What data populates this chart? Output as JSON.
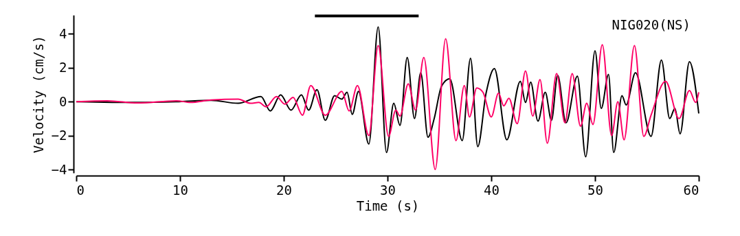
{
  "chart_data": {
    "type": "line",
    "xlabel": "Time (s)",
    "ylabel": "Velocity (cm/s)",
    "annotations": [
      "NIG020(NS)"
    ],
    "xlim": [
      0,
      60
    ],
    "xticks": [
      0,
      10,
      20,
      30,
      40,
      50,
      60
    ],
    "ylim": [
      -4.2,
      5.1
    ],
    "yticks": [
      -4,
      -2,
      0,
      2,
      4
    ],
    "grid": false,
    "legend": false,
    "series": [
      {
        "color": "#000000",
        "x": [
          0,
          5.9,
          9.9,
          13,
          15.6,
          17.8,
          18.7,
          19.7,
          20.7,
          21.7,
          22.4,
          23.2,
          24.0,
          24.9,
          25.6,
          26.1,
          26.6,
          27.2,
          28.2,
          29.1,
          29.9,
          30.6,
          31.2,
          31.9,
          32.6,
          33.2,
          33.9,
          34.5,
          35.2,
          36.0,
          37.2,
          38.0,
          38.7,
          39.5,
          40.3,
          41.5,
          42.8,
          43.3,
          43.8,
          44.5,
          45.2,
          45.8,
          46.4,
          47.2,
          48.3,
          49.1,
          50.0,
          50.6,
          51.3,
          51.8,
          52.6,
          53.0,
          53.9,
          55.4,
          56.4,
          57.2,
          57.7,
          58.2,
          59.1,
          60
        ],
        "values": [
          0,
          -0.05,
          0,
          0.08,
          -0.1,
          0.3,
          -0.55,
          0.4,
          -0.5,
          0.4,
          -0.5,
          0.7,
          -1.1,
          0.35,
          0.15,
          0.55,
          -0.75,
          0.6,
          -2.5,
          4.4,
          -3.0,
          -0.1,
          -1.4,
          2.6,
          -1.0,
          1.7,
          -2.1,
          -1.0,
          0.9,
          1.35,
          -2.3,
          2.55,
          -2.65,
          0.5,
          1.95,
          -2.25,
          1.2,
          -0.05,
          1.15,
          -1.15,
          0.55,
          -1.1,
          1.55,
          -1.25,
          1.5,
          -3.25,
          3.0,
          -0.4,
          1.6,
          -3.0,
          0.35,
          -0.2,
          1.7,
          -2.05,
          2.45,
          -1.0,
          -0.4,
          -1.9,
          2.35,
          -0.7
        ]
      },
      {
        "color": "#ff0066",
        "x": [
          0,
          3,
          5.9,
          9.7,
          11,
          13,
          15.6,
          16.8,
          17.6,
          18.3,
          19.3,
          20.1,
          20.9,
          21.8,
          22.6,
          24.0,
          25.6,
          26.3,
          27.1,
          28.2,
          29.1,
          30.1,
          30.8,
          31.2,
          32.0,
          32.7,
          33.5,
          34.6,
          35.6,
          36.6,
          37.4,
          37.9,
          38.6,
          39.2,
          40.0,
          40.7,
          41.2,
          41.7,
          42.5,
          43.3,
          44.0,
          44.7,
          45.4,
          46.3,
          47.1,
          47.8,
          48.6,
          49.2,
          49.8,
          50.7,
          51.6,
          52.2,
          52.8,
          53.8,
          54.7,
          55.4,
          56.8,
          58.1,
          59.1,
          59.7,
          60
        ],
        "values": [
          0,
          0.05,
          -0.08,
          0.05,
          -0.05,
          0.1,
          0.15,
          -0.1,
          -0.05,
          -0.3,
          0.3,
          -0.15,
          0.25,
          -0.8,
          0.95,
          -0.8,
          0.6,
          -0.55,
          0.95,
          -2.0,
          3.3,
          -2.05,
          -0.5,
          -0.85,
          1.05,
          -0.5,
          2.6,
          -4.0,
          3.7,
          -2.3,
          0.95,
          -0.9,
          0.8,
          0.55,
          -0.9,
          0.5,
          -0.25,
          0.2,
          -1.3,
          1.8,
          -0.85,
          1.3,
          -2.45,
          1.65,
          -1.25,
          1.65,
          -1.45,
          -0.1,
          -1.35,
          3.35,
          -2.0,
          0,
          -2.25,
          3.3,
          -2.05,
          -0.8,
          1.2,
          -1.0,
          0.65,
          -0.05,
          0.55
        ]
      },
      {
        "color": "#000000",
        "x": [
          23,
          33
        ],
        "values": [
          5.05,
          5.05
        ]
      }
    ]
  }
}
